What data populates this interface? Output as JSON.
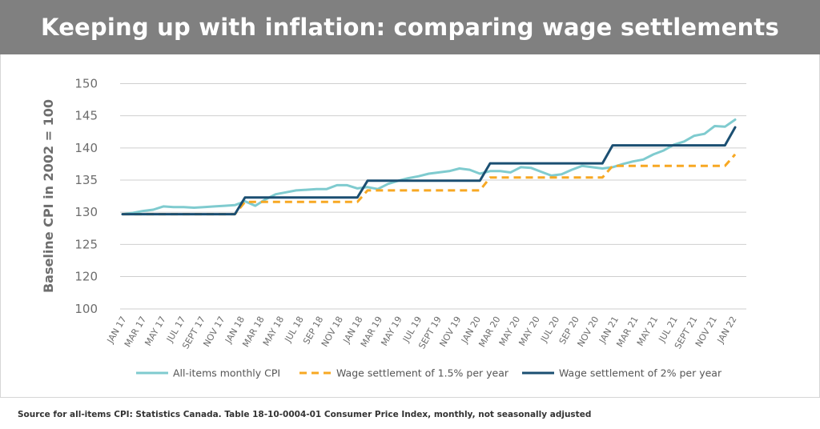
{
  "header": {
    "title": "Keeping up with inflation: comparing wage settlements"
  },
  "footer": {
    "source": "Source for all-items CPI: Statistics Canada. Table 18-10-0004-01 Consumer Price Index, monthly, not seasonally adjusted"
  },
  "chart_data": {
    "type": "line",
    "title": "",
    "xlabel": "",
    "ylabel": "Baseline CPI in 2002 = 100",
    "ylim": [
      100,
      150
    ],
    "yticks": [
      100,
      120,
      125,
      130,
      135,
      140,
      145,
      150
    ],
    "axis_break": "between 100 and 120",
    "grid": true,
    "legend_position": "bottom",
    "x_tick_labels": [
      "JAN 17",
      "MAR 17",
      "MAY 17",
      "JUL 17",
      "SEPT 17",
      "NOV 17",
      "JAN 18",
      "MAR 18",
      "MAY 18",
      "JUL 18",
      "SEP 18",
      "NOV 18",
      "JAN 18",
      "MAR 19",
      "MAY 19",
      "JUL 19",
      "SEPT 19",
      "NOV 19",
      "JAN 20",
      "MAR 20",
      "MAY 20",
      "MAY 20",
      "JUL 20",
      "SEP 20",
      "NOV 20",
      "JAN 21",
      "MAR 21",
      "MAY 21",
      "JUL 21",
      "SEPT 21",
      "NOV 21",
      "JAN 22"
    ],
    "x": [
      "2017-01",
      "2017-02",
      "2017-03",
      "2017-04",
      "2017-05",
      "2017-06",
      "2017-07",
      "2017-08",
      "2017-09",
      "2017-10",
      "2017-11",
      "2017-12",
      "2018-01",
      "2018-02",
      "2018-03",
      "2018-04",
      "2018-05",
      "2018-06",
      "2018-07",
      "2018-08",
      "2018-09",
      "2018-10",
      "2018-11",
      "2018-12",
      "2019-01",
      "2019-02",
      "2019-03",
      "2019-04",
      "2019-05",
      "2019-06",
      "2019-07",
      "2019-08",
      "2019-09",
      "2019-10",
      "2019-11",
      "2019-12",
      "2020-01",
      "2020-02",
      "2020-03",
      "2020-04",
      "2020-05",
      "2020-06",
      "2020-07",
      "2020-08",
      "2020-09",
      "2020-10",
      "2020-11",
      "2020-12",
      "2021-01",
      "2021-02",
      "2021-03",
      "2021-04",
      "2021-05",
      "2021-06",
      "2021-07",
      "2021-08",
      "2021-09",
      "2021-10",
      "2021-11",
      "2021-12",
      "2022-01"
    ],
    "series": [
      {
        "name": "All-items monthly CPI",
        "color": "#7fcbcf",
        "style": "solid",
        "values": [
          129.7,
          129.9,
          130.2,
          130.4,
          130.9,
          130.8,
          130.8,
          130.7,
          130.8,
          130.9,
          131.0,
          131.1,
          131.7,
          131.0,
          132.0,
          132.8,
          133.1,
          133.4,
          133.5,
          133.6,
          133.6,
          134.2,
          134.2,
          133.7,
          133.9,
          133.6,
          134.4,
          134.9,
          135.3,
          135.6,
          136.0,
          136.2,
          136.4,
          136.8,
          136.6,
          136.0,
          136.4,
          136.4,
          136.2,
          137.0,
          136.9,
          136.3,
          135.7,
          135.9,
          136.6,
          137.2,
          137.0,
          136.8,
          137.0,
          137.5,
          137.9,
          138.2,
          139.0,
          139.6,
          140.5,
          141.0,
          141.9,
          142.2,
          143.4,
          143.3,
          144.4
        ]
      },
      {
        "name": "Wage settlement of 1.5% per year",
        "color": "#f7a823",
        "style": "dashed",
        "values": [
          129.7,
          129.7,
          129.7,
          129.7,
          129.7,
          129.7,
          129.7,
          129.7,
          129.7,
          129.7,
          129.7,
          129.7,
          131.6,
          131.6,
          131.6,
          131.6,
          131.6,
          131.6,
          131.6,
          131.6,
          131.6,
          131.6,
          131.6,
          131.6,
          133.4,
          133.4,
          133.4,
          133.4,
          133.4,
          133.4,
          133.4,
          133.4,
          133.4,
          133.4,
          133.4,
          133.4,
          135.4,
          135.4,
          135.4,
          135.4,
          135.4,
          135.4,
          135.4,
          135.4,
          135.4,
          135.4,
          135.4,
          135.4,
          137.2,
          137.2,
          137.2,
          137.2,
          137.2,
          137.2,
          137.2,
          137.2,
          137.2,
          137.2,
          137.2,
          137.2,
          139.0
        ]
      },
      {
        "name": "Wage settlement of 2% per year",
        "color": "#1b4f72",
        "style": "solid",
        "values": [
          129.7,
          129.7,
          129.7,
          129.7,
          129.7,
          129.7,
          129.7,
          129.7,
          129.7,
          129.7,
          129.7,
          129.7,
          132.3,
          132.3,
          132.3,
          132.3,
          132.3,
          132.3,
          132.3,
          132.3,
          132.3,
          132.3,
          132.3,
          132.3,
          134.9,
          134.9,
          134.9,
          134.9,
          134.9,
          134.9,
          134.9,
          134.9,
          134.9,
          134.9,
          134.9,
          134.9,
          137.6,
          137.6,
          137.6,
          137.6,
          137.6,
          137.6,
          137.6,
          137.6,
          137.6,
          137.6,
          137.6,
          137.6,
          140.4,
          140.4,
          140.4,
          140.4,
          140.4,
          140.4,
          140.4,
          140.4,
          140.4,
          140.4,
          140.4,
          140.4,
          143.2
        ]
      }
    ]
  }
}
